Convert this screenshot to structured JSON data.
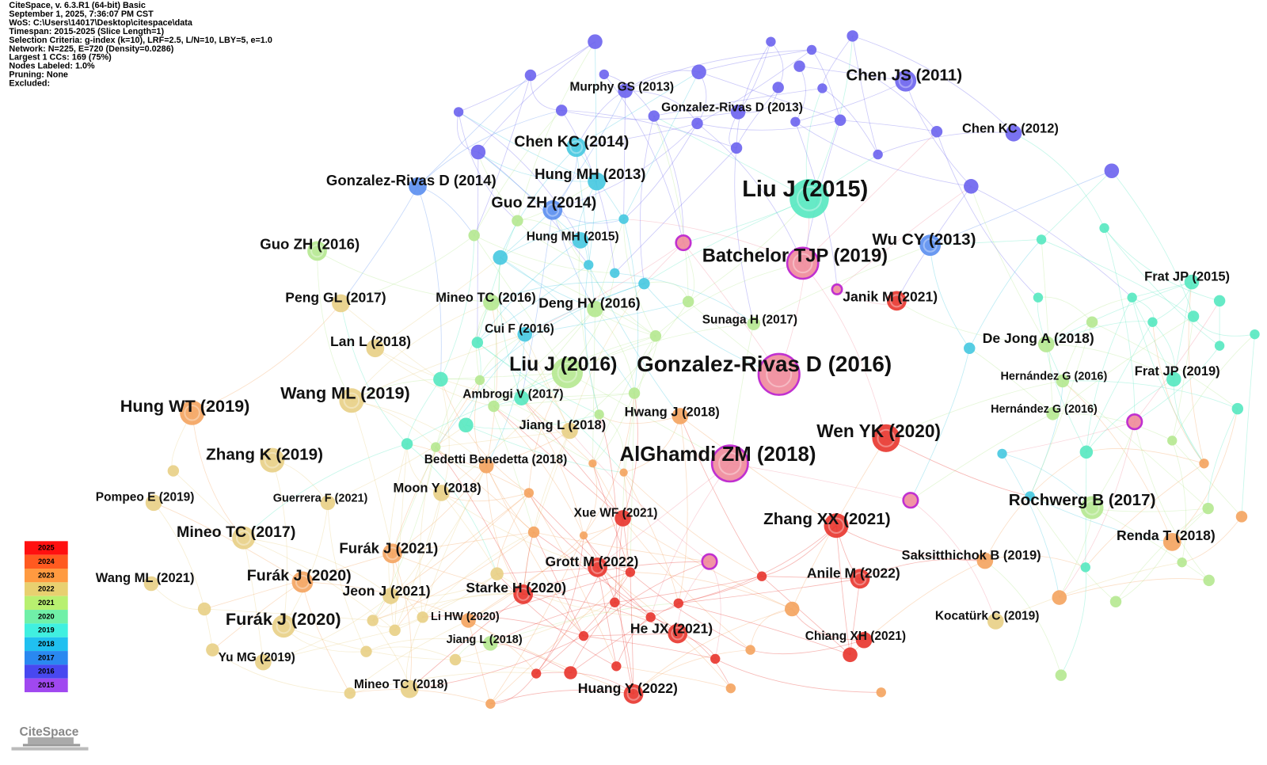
{
  "header": {
    "lines": [
      "CiteSpace, v. 6.3.R1 (64-bit) Basic",
      "September 1, 2025, 7:36:07 PM CST",
      "WoS: C:\\Users\\14017\\Desktop\\citespace\\data",
      "Timespan: 2015-2025 (Slice Length=1)",
      "Selection Criteria: g-index (k=10), LRF=2.5, L/N=10, LBY=5, e=1.0",
      "Network: N=225, E=720 (Density=0.0286)",
      "Largest 1 CCs: 169 (75%)",
      "Nodes Labeled: 1.0%",
      "Pruning: None",
      "Excluded:"
    ]
  },
  "nodes": [
    {
      "label": "Murphy GS (2013)"
    },
    {
      "label": "Chen JS (2011)"
    },
    {
      "label": "Gonzalez-Rivas D (2013)"
    },
    {
      "label": "Chen KC (2012)"
    },
    {
      "label": "Chen KC (2014)"
    },
    {
      "label": "Hung MH (2013)"
    },
    {
      "label": "Gonzalez-Rivas D (2014)"
    },
    {
      "label": "Liu J (2015)"
    },
    {
      "label": "Guo ZH (2014)"
    },
    {
      "label": "Hung MH (2015)"
    },
    {
      "label": "Wu CY (2013)"
    },
    {
      "label": "Guo ZH (2016)"
    },
    {
      "label": "Batchelor TJP (2019)"
    },
    {
      "label": "Frat JP (2015)"
    },
    {
      "label": "Peng GL (2017)"
    },
    {
      "label": "Mineo TC (2016)"
    },
    {
      "label": "Deng HY (2016)"
    },
    {
      "label": "Janik M (2021)"
    },
    {
      "label": "Sunaga H (2017)"
    },
    {
      "label": "Cui F (2016)"
    },
    {
      "label": "Lan L (2018)"
    },
    {
      "label": "De Jong A (2018)"
    },
    {
      "label": "Liu J (2016)"
    },
    {
      "label": "Gonzalez-Rivas D (2016)"
    },
    {
      "label": "Hernández G (2016)"
    },
    {
      "label": "Frat JP (2019)"
    },
    {
      "label": "Hung WT (2019)"
    },
    {
      "label": "Wang ML (2019)"
    },
    {
      "label": "Ambrogi V (2017)"
    },
    {
      "label": "Hwang J (2018)"
    },
    {
      "label": "Hernández G (2016)"
    },
    {
      "label": "Jiang L (2018)"
    },
    {
      "label": "Wen YK (2020)"
    },
    {
      "label": "Zhang K (2019)"
    },
    {
      "label": "AlGhamdi ZM (2018)"
    },
    {
      "label": "Bedetti Benedetta (2018)"
    },
    {
      "label": "Pompeo E (2019)"
    },
    {
      "label": "Guerrera F (2021)"
    },
    {
      "label": "Moon Y (2018)"
    },
    {
      "label": "Rochwerg B (2017)"
    },
    {
      "label": "Xue WF (2021)"
    },
    {
      "label": "Zhang XX (2021)"
    },
    {
      "label": "Mineo TC (2017)"
    },
    {
      "label": "Furák J (2021)"
    },
    {
      "label": "Renda T (2018)"
    },
    {
      "label": "Saksitthichok B (2019)"
    },
    {
      "label": "Grott M (2022)"
    },
    {
      "label": "Wang ML (2021)"
    },
    {
      "label": "Furák J (2020)"
    },
    {
      "label": "Anile M (2022)"
    },
    {
      "label": "Jeon J (2021)"
    },
    {
      "label": "Starke H (2020)"
    },
    {
      "label": "Li HW (2020)"
    },
    {
      "label": "Furák J (2020)"
    },
    {
      "label": "Kocatürk C (2019)"
    },
    {
      "label": "He JX (2021)"
    },
    {
      "label": "Chiang XH (2021)"
    },
    {
      "label": "Jiang L (2018)"
    },
    {
      "label": "Yu MG (2019)"
    },
    {
      "label": "Mineo TC (2018)"
    },
    {
      "label": "Huang Y (2022)"
    }
  ],
  "legend": {
    "years": [
      "2025",
      "2024",
      "2023",
      "2022",
      "2021",
      "2020",
      "2019",
      "2018",
      "2017",
      "2016",
      "2015"
    ]
  },
  "logo": "CiteSpace"
}
